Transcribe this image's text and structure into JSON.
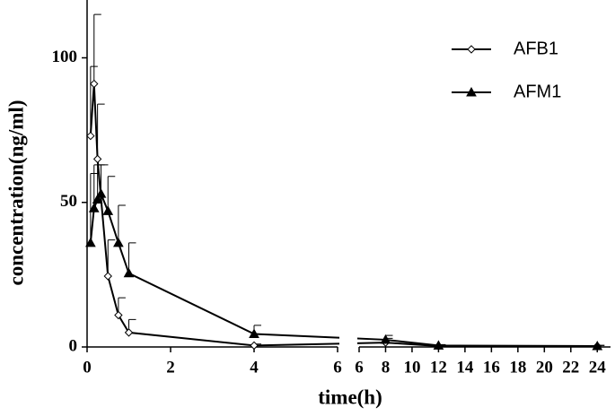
{
  "chart_data": {
    "type": "line",
    "x_label": "time(h)",
    "y_label": "concentration(ng/ml)",
    "x": [
      0.083,
      0.167,
      0.25,
      0.333,
      0.5,
      0.75,
      1,
      4,
      8,
      12,
      24
    ],
    "xlim_segments": [
      [
        0,
        6
      ],
      [
        6,
        25
      ]
    ],
    "xticks_segments": [
      [
        0,
        2,
        4,
        6
      ],
      [
        6,
        8,
        10,
        12,
        14,
        16,
        18,
        20,
        22,
        24
      ]
    ],
    "ylim": [
      0,
      120
    ],
    "yticks": [
      0,
      50,
      100
    ],
    "grid": false,
    "legend": "upper right",
    "series": [
      {
        "name": "AFB1",
        "color": "#000000",
        "marker": "open-diamond",
        "values": [
          73,
          91,
          65,
          null,
          24.5,
          11,
          5,
          0.5,
          1.5,
          0.3,
          0.3
        ],
        "errors": [
          24,
          24,
          19,
          null,
          12.5,
          6,
          4.5,
          0.5,
          1.5,
          0.3,
          0.3
        ]
      },
      {
        "name": "AFM1",
        "color": "#000000",
        "marker": "filled-triangle",
        "values": [
          36,
          48,
          51,
          53,
          47,
          36,
          25.5,
          4.5,
          2.5,
          0.5,
          0.3
        ],
        "errors": [
          24,
          15,
          12,
          10,
          12,
          13,
          10.5,
          3,
          1.5,
          0.3,
          0.2
        ]
      }
    ]
  }
}
